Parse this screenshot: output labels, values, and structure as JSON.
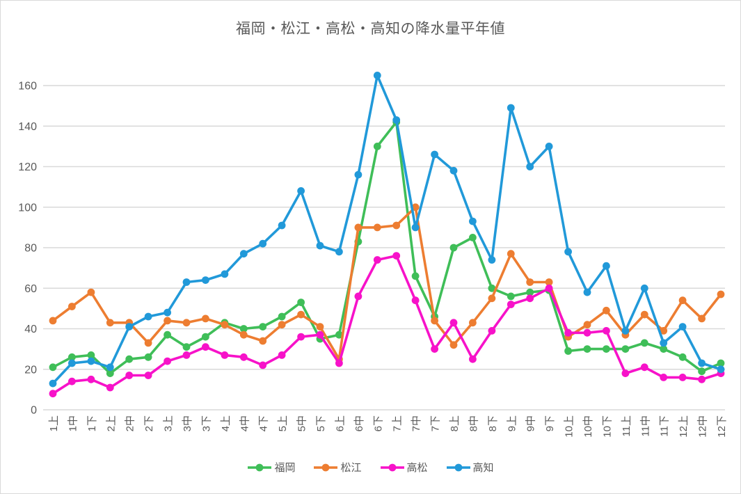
{
  "chart_data": {
    "type": "line",
    "title": "福岡・松江・高松・高知の降水量平年値",
    "xlabel": "",
    "ylabel": "",
    "ylim": [
      0,
      170
    ],
    "yticks": [
      0,
      20,
      40,
      60,
      80,
      100,
      120,
      140,
      160
    ],
    "grid": true,
    "legend_position": "bottom",
    "categories": [
      "1上",
      "1中",
      "1下",
      "2上",
      "2中",
      "2下",
      "3上",
      "3中",
      "3下",
      "4上",
      "4中",
      "4下",
      "5上",
      "5中",
      "5下",
      "6上",
      "6中",
      "6下",
      "7上",
      "7中",
      "7下",
      "8上",
      "8中",
      "8下",
      "9上",
      "9中",
      "9下",
      "10上",
      "10中",
      "10下",
      "11上",
      "11中",
      "11下",
      "12上",
      "12中",
      "12下"
    ],
    "series": [
      {
        "name": "福岡",
        "color": "#3FBE58",
        "values": [
          21,
          26,
          27,
          18,
          25,
          26,
          37,
          31,
          36,
          43,
          40,
          41,
          46,
          53,
          35,
          37,
          83,
          130,
          142,
          66,
          46,
          80,
          85,
          60,
          56,
          58,
          59,
          29,
          30,
          30,
          30,
          33,
          30,
          26,
          19,
          23
        ]
      },
      {
        "name": "松江",
        "color": "#ED7D31",
        "values": [
          44,
          51,
          58,
          43,
          43,
          33,
          44,
          43,
          45,
          42,
          37,
          34,
          42,
          47,
          41,
          25,
          90,
          90,
          91,
          100,
          44,
          32,
          43,
          55,
          77,
          63,
          63,
          36,
          42,
          49,
          37,
          47,
          39,
          54,
          45,
          57
        ]
      },
      {
        "name": "高松",
        "color": "#F712C9",
        "values": [
          8,
          14,
          15,
          11,
          17,
          17,
          24,
          27,
          31,
          27,
          26,
          22,
          27,
          36,
          37,
          23,
          56,
          74,
          76,
          54,
          30,
          43,
          25,
          39,
          52,
          55,
          60,
          38,
          38,
          39,
          18,
          21,
          16,
          16,
          15,
          18
        ]
      },
      {
        "name": "高知",
        "color": "#2199D9",
        "values": [
          13,
          23,
          24,
          21,
          41,
          46,
          48,
          63,
          64,
          67,
          77,
          82,
          91,
          108,
          81,
          78,
          116,
          165,
          143,
          90,
          126,
          118,
          93,
          74,
          149,
          120,
          130,
          78,
          58,
          71,
          39,
          60,
          33,
          41,
          23,
          20
        ]
      }
    ]
  },
  "styles": {
    "background": "#FFFFFF",
    "border_color": "#D9D9D9",
    "grid_color": "#D9D9D9",
    "axis_line_color": "#D9D9D9",
    "axis_text_color": "#595959",
    "title_color": "#595959"
  }
}
